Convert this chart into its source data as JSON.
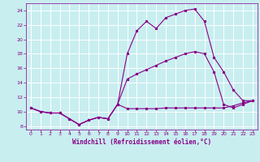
{
  "bg_color": "#c8eef0",
  "line_color": "#880088",
  "grid_color": "#ffffff",
  "xlabel": "Windchill (Refroidissement éolien,°C)",
  "xlabel_color": "#880088",
  "tick_color": "#880088",
  "xlim": [
    -0.5,
    23.5
  ],
  "ylim": [
    7.5,
    25.0
  ],
  "yticks": [
    8,
    10,
    12,
    14,
    16,
    18,
    20,
    22,
    24
  ],
  "xticks": [
    0,
    1,
    2,
    3,
    4,
    5,
    6,
    7,
    8,
    9,
    10,
    11,
    12,
    13,
    14,
    15,
    16,
    17,
    18,
    19,
    20,
    21,
    22,
    23
  ],
  "series1_x": [
    0,
    1,
    2,
    3,
    4,
    5,
    6,
    7,
    8,
    9,
    10,
    11,
    12,
    13,
    14,
    15,
    16,
    17,
    18,
    19,
    20,
    21,
    22,
    23
  ],
  "series1_y": [
    10.5,
    10.0,
    9.8,
    9.8,
    9.0,
    8.2,
    8.8,
    9.2,
    9.0,
    11.0,
    10.4,
    10.4,
    10.4,
    10.4,
    10.5,
    10.5,
    10.5,
    10.5,
    10.5,
    10.5,
    10.5,
    10.8,
    11.2,
    11.5
  ],
  "series2_x": [
    0,
    1,
    2,
    3,
    4,
    5,
    6,
    7,
    8,
    9,
    10,
    11,
    12,
    13,
    14,
    15,
    16,
    17,
    18,
    19,
    20,
    21,
    22,
    23
  ],
  "series2_y": [
    10.5,
    10.0,
    9.8,
    9.8,
    9.0,
    8.2,
    8.8,
    9.2,
    9.0,
    11.0,
    14.5,
    15.2,
    15.8,
    16.4,
    17.0,
    17.5,
    18.0,
    18.3,
    18.0,
    15.5,
    11.0,
    10.5,
    11.0,
    11.5
  ],
  "series3_x": [
    0,
    1,
    2,
    3,
    4,
    5,
    6,
    7,
    8,
    9,
    10,
    11,
    12,
    13,
    14,
    15,
    16,
    17,
    18,
    19,
    20,
    21,
    22,
    23
  ],
  "series3_y": [
    10.5,
    10.0,
    9.8,
    9.8,
    9.0,
    8.2,
    8.8,
    9.2,
    9.0,
    11.0,
    18.0,
    21.2,
    22.5,
    21.5,
    23.0,
    23.5,
    24.0,
    24.2,
    22.5,
    17.5,
    15.5,
    13.0,
    11.5,
    11.5
  ]
}
